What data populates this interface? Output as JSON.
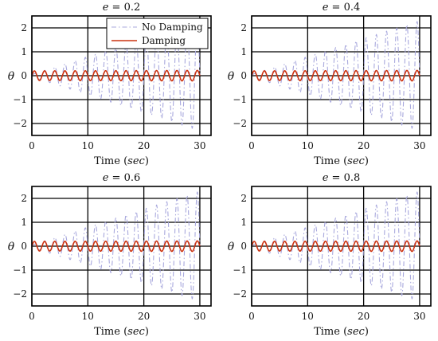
{
  "chart_data": [
    {
      "type": "line",
      "title": "e = 0.2",
      "title_parts": {
        "var": "e",
        "rest": " = 0.2"
      },
      "xlabel_prefix": "Time (",
      "xlabel_unit": "sec",
      "xlabel_suffix": ")",
      "ylabel": "θ",
      "xlim": [
        0,
        32
      ],
      "ylim": [
        -2.5,
        2.5
      ],
      "xticks": [
        "0",
        "10",
        "20",
        "30"
      ],
      "yticks": [
        "2",
        "1",
        "0",
        "−1",
        "−2"
      ],
      "grid": true,
      "legend": {
        "position": "top-right",
        "entries": [
          "No Damping",
          "Damping"
        ]
      },
      "series": [
        {
          "name": "No Damping",
          "color": "#a8a8dd",
          "style": "dashdot",
          "t_end": 30,
          "freq_hz": 0.55,
          "amp_start": 0.05,
          "amp_end": 2.3
        },
        {
          "name": "Damping",
          "color": "#cc3311",
          "style": "solid",
          "t_end": 30,
          "freq_hz": 0.55,
          "amp_start": 0.2,
          "amp_end": 0.22
        }
      ]
    },
    {
      "type": "line",
      "title": "e = 0.4",
      "title_parts": {
        "var": "e",
        "rest": " = 0.4"
      },
      "xlabel_prefix": "Time (",
      "xlabel_unit": "sec",
      "xlabel_suffix": ")",
      "ylabel": "θ",
      "xlim": [
        0,
        32
      ],
      "ylim": [
        -2.5,
        2.5
      ],
      "xticks": [
        "0",
        "10",
        "20",
        "30"
      ],
      "yticks": [
        "2",
        "1",
        "0",
        "−1",
        "−2"
      ],
      "grid": true,
      "series": [
        {
          "name": "No Damping",
          "color": "#a8a8dd",
          "style": "dashdot",
          "t_end": 30,
          "freq_hz": 0.55,
          "amp_start": 0.05,
          "amp_end": 2.3
        },
        {
          "name": "Damping",
          "color": "#cc3311",
          "style": "solid",
          "t_end": 30,
          "freq_hz": 0.55,
          "amp_start": 0.2,
          "amp_end": 0.22
        }
      ]
    },
    {
      "type": "line",
      "title": "e = 0.6",
      "title_parts": {
        "var": "e",
        "rest": " = 0.6"
      },
      "xlabel_prefix": "Time (",
      "xlabel_unit": "sec",
      "xlabel_suffix": ")",
      "ylabel": "θ",
      "xlim": [
        0,
        32
      ],
      "ylim": [
        -2.5,
        2.5
      ],
      "xticks": [
        "0",
        "10",
        "20",
        "30"
      ],
      "yticks": [
        "2",
        "1",
        "0",
        "−1",
        "−2"
      ],
      "grid": true,
      "series": [
        {
          "name": "No Damping",
          "color": "#a8a8dd",
          "style": "dashdot",
          "t_end": 30,
          "freq_hz": 0.55,
          "amp_start": 0.05,
          "amp_end": 2.3
        },
        {
          "name": "Damping",
          "color": "#cc3311",
          "style": "solid",
          "t_end": 30,
          "freq_hz": 0.55,
          "amp_start": 0.2,
          "amp_end": 0.22
        }
      ]
    },
    {
      "type": "line",
      "title": "e = 0.8",
      "title_parts": {
        "var": "e",
        "rest": " = 0.8"
      },
      "xlabel_prefix": "Time (",
      "xlabel_unit": "sec",
      "xlabel_suffix": ")",
      "ylabel": "θ",
      "xlim": [
        0,
        32
      ],
      "ylim": [
        -2.5,
        2.5
      ],
      "xticks": [
        "0",
        "10",
        "20",
        "30"
      ],
      "yticks": [
        "2",
        "1",
        "0",
        "−1",
        "−2"
      ],
      "grid": true,
      "series": [
        {
          "name": "No Damping",
          "color": "#a8a8dd",
          "style": "dashdot",
          "t_end": 30,
          "freq_hz": 0.55,
          "amp_start": 0.05,
          "amp_end": 2.3
        },
        {
          "name": "Damping",
          "color": "#cc3311",
          "style": "solid",
          "t_end": 30,
          "freq_hz": 0.55,
          "amp_start": 0.2,
          "amp_end": 0.22
        }
      ]
    }
  ]
}
